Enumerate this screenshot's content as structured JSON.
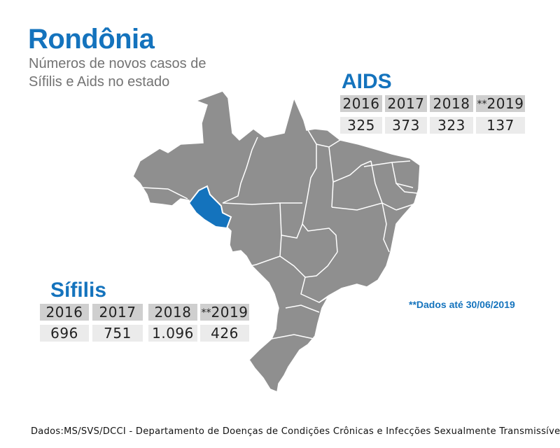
{
  "header": {
    "title": "Rondônia",
    "subtitle": "Números de novos casos de Sífilis e Aids no estado"
  },
  "aids": {
    "title": "AIDS",
    "years": [
      "2016",
      "2017",
      "2018",
      "2019"
    ],
    "year_prefix_last": "**",
    "values": [
      "325",
      "373",
      "323",
      "137"
    ]
  },
  "sifilis": {
    "title": "Sífilis",
    "years": [
      "2016",
      "2017",
      "2018",
      "2019"
    ],
    "year_prefix_last": "**",
    "values": [
      "696",
      "751",
      "1.096",
      "426"
    ]
  },
  "note": "**Dados até 30/06/2019",
  "footer": "Dados:MS/SVS/DCCI - Departamento de Doenças de Condições Crônicas e Infecções Sexualmente Transmissível",
  "colors": {
    "accent": "#1473bd",
    "map_gray": "#8f8f8f",
    "highlight_state": "#1473bd"
  }
}
